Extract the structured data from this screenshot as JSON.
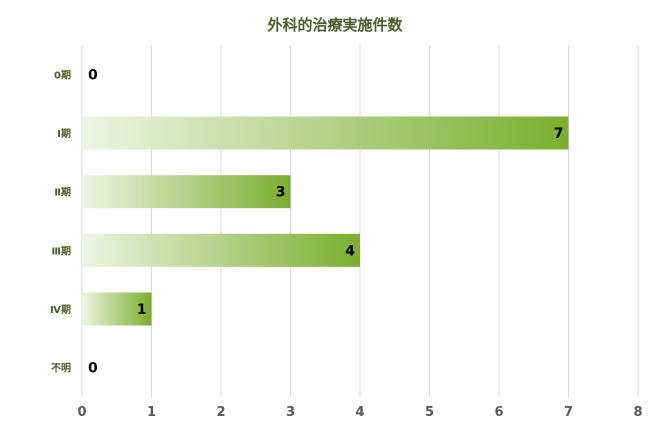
{
  "chart_data": {
    "type": "bar",
    "orientation": "horizontal",
    "title": "外科的治療実施件数",
    "categories": [
      "0期",
      "Ⅰ期",
      "Ⅱ期",
      "Ⅲ期",
      "Ⅳ期",
      "不明"
    ],
    "values": [
      0,
      7,
      3,
      4,
      1,
      0
    ],
    "xlim": [
      0,
      8
    ],
    "x_ticks": [
      0,
      1,
      2,
      3,
      4,
      5,
      6,
      7,
      8
    ],
    "grid": true,
    "legend": "none",
    "data_labels": true,
    "colors": {
      "bar_start": "#eef5e4",
      "bar_end": "#7aae2e",
      "title": "#4a5e2a",
      "category_label": "#4a5e2a",
      "tick_label": "#595959",
      "grid": "#d9d9d9",
      "data_label": "#000000"
    }
  }
}
